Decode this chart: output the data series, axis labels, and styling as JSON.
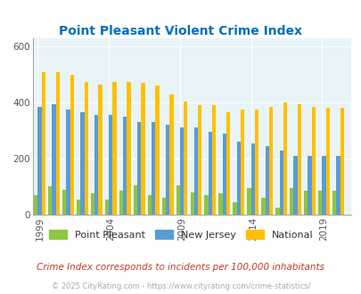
{
  "title": "Point Pleasant Violent Crime Index",
  "years": [
    1999,
    2000,
    2001,
    2002,
    2003,
    2004,
    2005,
    2006,
    2007,
    2008,
    2009,
    2010,
    2011,
    2012,
    2013,
    2014,
    2015,
    2016,
    2017,
    2018,
    2019,
    2020
  ],
  "point_pleasant": [
    70,
    100,
    90,
    55,
    75,
    55,
    85,
    105,
    70,
    60,
    105,
    80,
    70,
    75,
    45,
    95,
    60,
    25,
    95,
    85,
    85,
    85
  ],
  "new_jersey": [
    385,
    395,
    375,
    365,
    355,
    355,
    350,
    330,
    330,
    320,
    310,
    310,
    295,
    290,
    260,
    255,
    245,
    230,
    210,
    210,
    210,
    210
  ],
  "national": [
    510,
    510,
    500,
    475,
    465,
    475,
    475,
    470,
    460,
    430,
    405,
    390,
    390,
    365,
    375,
    375,
    385,
    400,
    395,
    385,
    380,
    380
  ],
  "color_pp": "#8dc63f",
  "color_nj": "#5b9bd5",
  "color_nat": "#ffc000",
  "bg_color": "#e8f4f8",
  "title_color": "#0070c0",
  "subtitle_color": "#c0392b",
  "copyright_color": "#aaaaaa",
  "xlabel_ticks": [
    1999,
    2004,
    2009,
    2014,
    2019
  ],
  "ylim": [
    0,
    630
  ],
  "yticks": [
    0,
    200,
    400,
    600
  ],
  "subtitle": "Crime Index corresponds to incidents per 100,000 inhabitants",
  "copyright": "© 2025 CityRating.com - https://www.cityrating.com/crime-statistics/"
}
